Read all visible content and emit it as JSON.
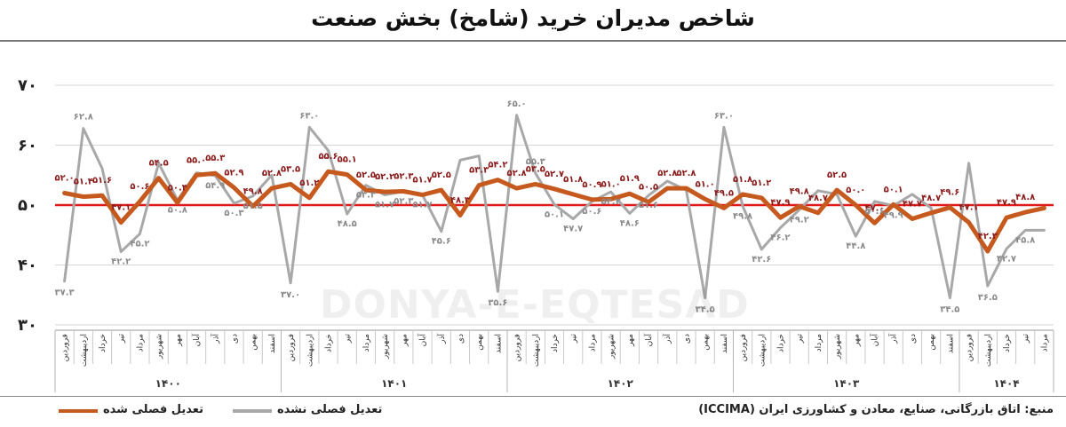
{
  "title": "شاخص مدیران خرید (شامخ) بخش صنعت",
  "watermark_text": "DONYA-E-EQTESAD",
  "source": "منبع: اتاق بازرگانی، صنایع، معادن و کشاورزی ایران (ICCIMA)",
  "colors": {
    "adjusted": "#c65a1e",
    "unadjusted": "#a8a8a8",
    "threshold": "#e01b1b",
    "value_label_adjusted": "#8b1a1a",
    "value_label_unadjusted": "#8a8a8a"
  },
  "chart_data": {
    "type": "line",
    "title": "شاخص مدیران خرید (شامخ) بخش صنعت",
    "ylim": [
      30,
      70
    ],
    "yticks": [
      "۳۰",
      "۴۰",
      "۵۰",
      "۶۰",
      "۷۰"
    ],
    "grid": true,
    "reference_line": 50,
    "legend_position": "bottom-left",
    "categories": [
      "فروردین",
      "اردیبهشت",
      "خرداد",
      "تیر",
      "مرداد",
      "شهریور",
      "مهر",
      "آبان",
      "آذر",
      "دی",
      "بهمن",
      "اسفند",
      "فروردین",
      "اردیبهشت",
      "خرداد",
      "تیر",
      "مرداد",
      "شهریور",
      "مهر",
      "آبان",
      "آذر",
      "دی",
      "بهمن",
      "اسفند",
      "فروردین",
      "اردیبهشت",
      "خرداد",
      "تیر",
      "مرداد",
      "شهریور",
      "مهر",
      "آبان",
      "آذر",
      "دی",
      "بهمن",
      "اسفند",
      "فروردین",
      "اردیبهشت",
      "خرداد",
      "تیر",
      "مرداد",
      "شهریور",
      "مهر",
      "آبان",
      "آذر",
      "دی",
      "بهمن",
      "اسفند",
      "فروردین",
      "اردیبهشت",
      "خرداد",
      "تیر",
      "مرداد"
    ],
    "year_groups": [
      {
        "label": "۱۴۰۰",
        "count": 12
      },
      {
        "label": "۱۴۰۱",
        "count": 12
      },
      {
        "label": "۱۴۰۲",
        "count": 12
      },
      {
        "label": "۱۴۰۳",
        "count": 12
      },
      {
        "label": "۱۴۰۴",
        "count": 5
      }
    ],
    "series": [
      {
        "name": "تعدیل فصلی شده",
        "values": [
          52.0,
          51.4,
          51.6,
          47.1,
          50.6,
          54.5,
          50.4,
          55.0,
          55.3,
          52.9,
          49.8,
          52.8,
          53.5,
          51.2,
          55.6,
          55.1,
          52.5,
          52.2,
          52.3,
          51.7,
          52.5,
          48.3,
          53.3,
          54.2,
          52.8,
          53.5,
          52.7,
          51.8,
          50.9,
          51.0,
          51.9,
          50.5,
          52.8,
          52.8,
          51.0,
          49.5,
          51.8,
          51.2,
          47.9,
          49.8,
          48.7,
          52.5,
          50.0,
          47.0,
          50.1,
          47.7,
          48.7,
          49.6,
          47.1,
          42.3,
          47.9,
          48.8,
          49.5
        ],
        "labels": [
          "۵۲.۰",
          "۵۱.۴",
          "۵۱.۶",
          "۴۷.۱",
          "۵۰.۶",
          "۵۴.۵",
          "۵۰.۴",
          "۵۵.۰",
          "۵۵.۳",
          "۵۲.۹",
          "۴۹.۸",
          "۵۲.۸",
          "۵۳.۵",
          "۵۱.۲",
          "۵۵.۶",
          "۵۵.۱",
          "۵۲.۵",
          "۵۲.۲",
          "۵۲.۳",
          "۵۱.۷",
          "۵۲.۵",
          "۴۸.۳",
          "۵۳.۳",
          "۵۴.۲",
          "۵۲.۸",
          "۵۳.۵",
          "۵۲.۷",
          "۵۱.۸",
          "۵۰.۹",
          "۵۱.۰",
          "۵۱.۹",
          "۵۰.۵",
          "۵۲.۸",
          "۵۲.۸",
          "۵۱.۰",
          "۴۹.۵",
          "۵۱.۸",
          "۵۱.۲",
          "۴۷.۹",
          "۴۹.۸",
          "۴۸.۷",
          "۵۲.۵",
          "۵۰.۰",
          "۴۷.۰",
          "۵۰.۱",
          "۴۷.۷",
          "۴۸.۷",
          "۴۹.۶",
          "۴۷.۱",
          "۴۲.۳",
          "۴۷.۹",
          "۴۸.۸",
          ""
        ]
      },
      {
        "name": "تعدیل فصلی نشده",
        "values": [
          37.3,
          62.8,
          56.1,
          42.2,
          45.2,
          57.0,
          50.8,
          55.4,
          54.9,
          50.3,
          51.5,
          55.0,
          37.0,
          63.0,
          59.1,
          48.5,
          53.3,
          51.7,
          52.3,
          51.7,
          45.6,
          57.5,
          58.2,
          35.6,
          65.0,
          55.3,
          50.1,
          47.7,
          50.6,
          52.2,
          48.6,
          51.6,
          54.0,
          52.5,
          34.5,
          63.0,
          49.8,
          42.6,
          46.2,
          49.2,
          52.4,
          51.8,
          44.8,
          50.6,
          49.9,
          51.8,
          49.5,
          34.5,
          57.0,
          36.5,
          42.7,
          45.8,
          45.8
        ],
        "labels": [
          "۳۷.۳",
          "۶۲.۸",
          "",
          "۴۲.۲",
          "۴۵.۲",
          "",
          "۵۰.۸",
          "",
          "۵۴.۹",
          "۵۰.۳",
          "۵۱.۵",
          "",
          "۳۷.۰",
          "۶۳.۰",
          "",
          "۴۸.۵",
          "۵۳.۳",
          "۵۱.۷",
          "۵۲.۳",
          "۵۱.۷",
          "۴۵.۶",
          "",
          "",
          "۳۵.۶",
          "۶۵.۰",
          "۵۵.۳",
          "۵۰.۱",
          "۴۷.۷",
          "۵۰.۶",
          "۵۲.۲",
          "۴۸.۶",
          "۵۱.۶",
          "",
          "",
          "۳۴.۵",
          "۶۳.۰",
          "۴۹.۸",
          "۴۲.۶",
          "۴۶.۲",
          "۴۹.۲",
          "",
          "",
          "۴۴.۸",
          "۵۰.۶",
          "۴۹.۹",
          "",
          "",
          "۳۴.۵",
          "",
          "۳۶.۵",
          "۴۲.۷",
          "۴۵.۸",
          ""
        ]
      }
    ]
  }
}
